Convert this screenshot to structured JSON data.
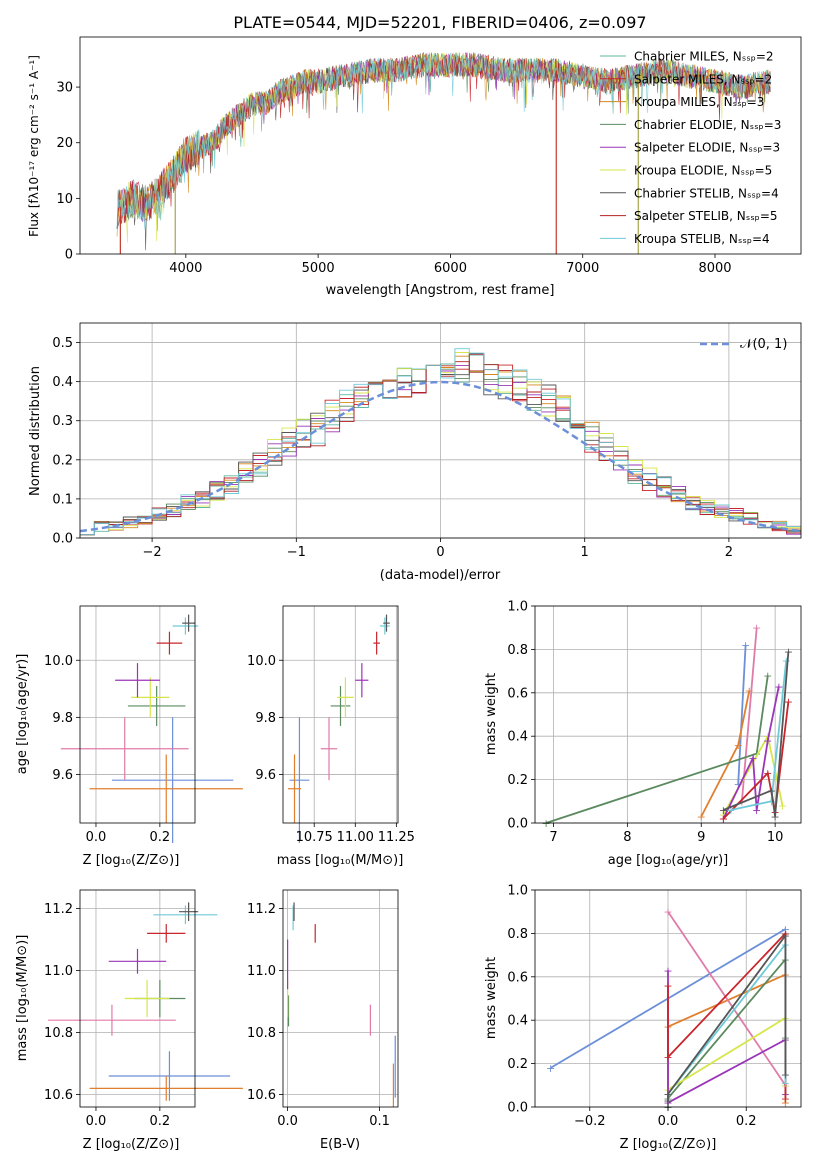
{
  "figure": {
    "title": "PLATE=0544, MJD=52201, FIBERID=0406, z=0.097"
  },
  "colors": {
    "palette": [
      "#5fb89f",
      "#c8262c",
      "#d4881e",
      "#5b8a5f",
      "#9b35b8",
      "#d6e64a",
      "#555555",
      "#b22222",
      "#6fcad8"
    ],
    "ssp_colors": [
      "#6b8fd8",
      "#e07f2e",
      "#e07ba9",
      "#5b8a5f",
      "#d6e64a",
      "#9b35b8",
      "#c8262c",
      "#6fcad8",
      "#555555"
    ],
    "gauss": "#6b8fd8",
    "grid": "#b0b0b0"
  },
  "chart_data": [
    {
      "id": "spectrum",
      "type": "line",
      "title": "PLATE=0544, MJD=52201, FIBERID=0406, z=0.097",
      "xlabel": "wavelength [Angstrom, rest frame]",
      "ylabel": "Flux [fλ10⁻¹⁷ erg cm⁻² s⁻¹ A⁻¹]",
      "xlim": [
        3200,
        8650
      ],
      "ylim": [
        0,
        39
      ],
      "xticks": [
        "4000",
        "5000",
        "6000",
        "7000",
        "8000"
      ],
      "yticks": [
        "0",
        "10",
        "20",
        "30"
      ],
      "grid": false,
      "legend": "top-right",
      "series": [
        {
          "name": "Chabrier MILES, Nₛₛₚ=2"
        },
        {
          "name": "Salpeter MILES, Nₛₛₚ=2"
        },
        {
          "name": "Kroupa MILES, Nₛₛₚ=3"
        },
        {
          "name": "Chabrier ELODIE, Nₛₛₚ=3"
        },
        {
          "name": "Salpeter ELODIE, Nₛₛₚ=3"
        },
        {
          "name": "Kroupa ELODIE, Nₛₛₚ=5"
        },
        {
          "name": "Chabrier STELIB, Nₛₛₚ=4"
        },
        {
          "name": "Salpeter STELIB, Nₛₛₚ=5"
        },
        {
          "name": "Kroupa STELIB, Nₛₛₚ=4"
        }
      ],
      "continuum": {
        "x": [
          3480,
          3600,
          3700,
          3800,
          3900,
          4000,
          4100,
          4200,
          4300,
          4400,
          4500,
          4600,
          4700,
          4800,
          4900,
          5000,
          5200,
          5400,
          5600,
          5800,
          6000,
          6200,
          6400,
          6600,
          6800,
          7000,
          7200,
          7400,
          7600,
          7800,
          8000,
          8200,
          8420
        ],
        "y": [
          8,
          10,
          9,
          11,
          14,
          18,
          19,
          20,
          23,
          25,
          27,
          27,
          29,
          30,
          31,
          31,
          32,
          33,
          33,
          34,
          34,
          34,
          33,
          33,
          33,
          32,
          31,
          32,
          33,
          32,
          31,
          30,
          31
        ]
      },
      "drops": [
        3505,
        3920,
        6800,
        7420
      ]
    },
    {
      "id": "residuals",
      "type": "line",
      "xlabel": "(data-model)/error",
      "ylabel": "Normed distribution",
      "xlim": [
        -2.5,
        2.5
      ],
      "ylim": [
        0,
        0.55
      ],
      "xticks": [
        "−2",
        "−1",
        "0",
        "1",
        "2"
      ],
      "yticks": [
        "0.0",
        "0.1",
        "0.2",
        "0.3",
        "0.4",
        "0.5"
      ],
      "grid": true,
      "legend": "top-right",
      "gauss_label": "𝒩(0, 1)",
      "bin_width": 0.1,
      "bin_start": -2.5,
      "base_values": [
        0.02,
        0.03,
        0.03,
        0.04,
        0.05,
        0.06,
        0.07,
        0.09,
        0.1,
        0.12,
        0.14,
        0.17,
        0.19,
        0.22,
        0.24,
        0.26,
        0.28,
        0.31,
        0.34,
        0.37,
        0.38,
        0.39,
        0.4,
        0.41,
        0.43,
        0.45,
        0.44,
        0.43,
        0.41,
        0.4,
        0.39,
        0.37,
        0.35,
        0.32,
        0.29,
        0.26,
        0.23,
        0.2,
        0.17,
        0.15,
        0.13,
        0.11,
        0.09,
        0.08,
        0.07,
        0.06,
        0.05,
        0.04,
        0.03,
        0.02
      ]
    },
    {
      "id": "age_vs_Z",
      "type": "scatter",
      "xlabel": "Z [log₁₀(Z/Z⊙)]",
      "ylabel": "age  [log₁₀(age/yr)]",
      "xlim": [
        -0.05,
        0.31
      ],
      "ylim": [
        9.43,
        10.19
      ],
      "xticks": [
        "0.0",
        "0.2"
      ],
      "yticks": [
        "9.6",
        "9.8",
        "10.0"
      ],
      "grid": true,
      "points": [
        {
          "x": 0.24,
          "y": 9.58,
          "xe": 0.19,
          "ye": 0.22,
          "c": 0
        },
        {
          "x": 0.22,
          "y": 9.55,
          "xe": 0.24,
          "ye": 0.12,
          "c": 1
        },
        {
          "x": 0.09,
          "y": 9.69,
          "xe": 0.2,
          "ye": 0.11,
          "c": 2
        },
        {
          "x": 0.19,
          "y": 9.84,
          "xe": 0.09,
          "ye": 0.07,
          "c": 3
        },
        {
          "x": 0.17,
          "y": 9.87,
          "xe": 0.06,
          "ye": 0.07,
          "c": 4
        },
        {
          "x": 0.13,
          "y": 9.93,
          "xe": 0.07,
          "ye": 0.06,
          "c": 5
        },
        {
          "x": 0.23,
          "y": 10.06,
          "xe": 0.04,
          "ye": 0.04,
          "c": 6
        },
        {
          "x": 0.28,
          "y": 10.12,
          "xe": 0.04,
          "ye": 0.03,
          "c": 7
        },
        {
          "x": 0.29,
          "y": 10.13,
          "xe": 0.02,
          "ye": 0.03,
          "c": 8
        }
      ]
    },
    {
      "id": "age_vs_mass",
      "type": "scatter",
      "xlabel": "mass [log₁₀(M/M⊙)]",
      "xlim": [
        10.56,
        11.26
      ],
      "ylim": [
        9.43,
        10.19
      ],
      "xticks": [
        "10.75",
        "11.00",
        "11.25"
      ],
      "yticks": [
        "9.6",
        "9.8",
        "10.0"
      ],
      "grid": true,
      "points": [
        {
          "x": 10.66,
          "y": 9.58,
          "xe": 0.06,
          "ye": 0.22,
          "c": 0
        },
        {
          "x": 10.63,
          "y": 9.55,
          "xe": 0.04,
          "ye": 0.12,
          "c": 1
        },
        {
          "x": 10.84,
          "y": 9.69,
          "xe": 0.05,
          "ye": 0.11,
          "c": 2
        },
        {
          "x": 10.91,
          "y": 9.84,
          "xe": 0.06,
          "ye": 0.07,
          "c": 3
        },
        {
          "x": 10.94,
          "y": 9.87,
          "xe": 0.05,
          "ye": 0.07,
          "c": 4
        },
        {
          "x": 11.04,
          "y": 9.93,
          "xe": 0.04,
          "ye": 0.06,
          "c": 5
        },
        {
          "x": 11.13,
          "y": 10.06,
          "xe": 0.02,
          "ye": 0.04,
          "c": 6
        },
        {
          "x": 11.18,
          "y": 10.12,
          "xe": 0.03,
          "ye": 0.03,
          "c": 7
        },
        {
          "x": 11.19,
          "y": 10.13,
          "xe": 0.02,
          "ye": 0.03,
          "c": 8
        }
      ]
    },
    {
      "id": "massweight_vs_age",
      "type": "line",
      "xlabel": "age  [log₁₀(age/yr)]",
      "ylabel": "mass weight",
      "xlim": [
        6.75,
        10.35
      ],
      "ylim": [
        0,
        1
      ],
      "xticks": [
        "7",
        "8",
        "9",
        "10"
      ],
      "yticks": [
        "0.0",
        "0.2",
        "0.4",
        "0.6",
        "0.8",
        "1.0"
      ],
      "grid": true,
      "series": [
        {
          "c": 0,
          "x": [
            9.5,
            9.6
          ],
          "y": [
            0.18,
            0.82
          ]
        },
        {
          "c": 1,
          "x": [
            9.0,
            9.5,
            9.65
          ],
          "y": [
            0.03,
            0.36,
            0.61
          ]
        },
        {
          "c": 2,
          "x": [
            9.55,
            9.75
          ],
          "y": [
            0.1,
            0.9
          ]
        },
        {
          "c": 3,
          "x": [
            6.9,
            9.75,
            9.9
          ],
          "y": [
            0.0,
            0.32,
            0.68
          ]
        },
        {
          "c": 4,
          "x": [
            9.3,
            9.9,
            10.1
          ],
          "y": [
            0.04,
            0.4,
            0.08
          ]
        },
        {
          "c": 5,
          "x": [
            9.3,
            9.7,
            9.75,
            9.9,
            10.05
          ],
          "y": [
            0.02,
            0.3,
            0.06,
            0.38,
            0.63
          ]
        },
        {
          "c": 6,
          "x": [
            9.3,
            9.9,
            10.0,
            10.18
          ],
          "y": [
            0.02,
            0.23,
            0.05,
            0.56
          ]
        },
        {
          "c": 7,
          "x": [
            9.4,
            9.95,
            10.15
          ],
          "y": [
            0.06,
            0.1,
            0.75
          ]
        },
        {
          "c": 8,
          "x": [
            9.3,
            9.95,
            10.0,
            10.18
          ],
          "y": [
            0.06,
            0.15,
            0.03,
            0.79
          ]
        }
      ]
    },
    {
      "id": "mass_vs_Z",
      "type": "scatter",
      "xlabel": "Z [log₁₀(Z/Z⊙)]",
      "ylabel": "mass [log₁₀(M/M⊙)]",
      "xlim": [
        -0.05,
        0.31
      ],
      "ylim": [
        10.56,
        11.26
      ],
      "xticks": [
        "0.0",
        "0.2"
      ],
      "yticks": [
        "10.6",
        "10.8",
        "11.0",
        "11.2"
      ],
      "grid": true,
      "points": [
        {
          "x": 0.23,
          "y": 10.66,
          "xe": 0.19,
          "ye": 0.08,
          "c": 0
        },
        {
          "x": 0.22,
          "y": 10.62,
          "xe": 0.24,
          "ye": 0.04,
          "c": 1
        },
        {
          "x": 0.05,
          "y": 10.84,
          "xe": 0.2,
          "ye": 0.05,
          "c": 2
        },
        {
          "x": 0.2,
          "y": 10.91,
          "xe": 0.08,
          "ye": 0.06,
          "c": 3
        },
        {
          "x": 0.16,
          "y": 10.91,
          "xe": 0.07,
          "ye": 0.06,
          "c": 4
        },
        {
          "x": 0.13,
          "y": 11.03,
          "xe": 0.09,
          "ye": 0.04,
          "c": 5
        },
        {
          "x": 0.22,
          "y": 11.12,
          "xe": 0.06,
          "ye": 0.03,
          "c": 6
        },
        {
          "x": 0.28,
          "y": 11.18,
          "xe": 0.1,
          "ye": 0.03,
          "c": 7
        },
        {
          "x": 0.29,
          "y": 11.19,
          "xe": 0.03,
          "ye": 0.03,
          "c": 8
        }
      ]
    },
    {
      "id": "mass_vs_ebv",
      "type": "scatter",
      "xlabel": "E(B-V)",
      "xlim": [
        -0.005,
        0.12
      ],
      "ylim": [
        10.56,
        11.26
      ],
      "xticks": [
        "0.0",
        "0.1"
      ],
      "yticks": [
        "10.6",
        "10.8",
        "11.0",
        "11.2"
      ],
      "grid": true,
      "points": [
        {
          "x": 0.117,
          "y": 10.69,
          "ye": 0.1,
          "c": 0
        },
        {
          "x": 0.115,
          "y": 10.63,
          "ye": 0.07,
          "c": 1
        },
        {
          "x": 0.09,
          "y": 10.84,
          "ye": 0.05,
          "c": 2
        },
        {
          "x": 0.001,
          "y": 10.87,
          "ye": 0.05,
          "c": 3
        },
        {
          "x": 0.0,
          "y": 10.91,
          "ye": 0.06,
          "c": 4
        },
        {
          "x": 0.0,
          "y": 11.02,
          "ye": 0.08,
          "c": 5
        },
        {
          "x": 0.03,
          "y": 11.12,
          "ye": 0.03,
          "c": 6
        },
        {
          "x": 0.006,
          "y": 11.17,
          "ye": 0.04,
          "c": 7
        },
        {
          "x": 0.007,
          "y": 11.19,
          "ye": 0.03,
          "c": 8
        }
      ]
    },
    {
      "id": "massweight_vs_Z",
      "type": "line",
      "xlabel": "Z [log₁₀(Z/Z⊙)]",
      "ylabel": "mass weight",
      "xlim": [
        -0.34,
        0.34
      ],
      "ylim": [
        0,
        1
      ],
      "xticks": [
        "−0.2",
        "0.0",
        "0.2"
      ],
      "yticks": [
        "0.0",
        "0.2",
        "0.4",
        "0.6",
        "0.8",
        "1.0"
      ],
      "grid": true,
      "series": [
        {
          "c": 0,
          "x": [
            -0.3,
            0.3
          ],
          "y": [
            0.18,
            0.82
          ]
        },
        {
          "c": 1,
          "x": [
            0.0,
            0.0,
            0.3,
            0.3
          ],
          "y": [
            0.03,
            0.37,
            0.61,
            0.02
          ]
        },
        {
          "c": 2,
          "x": [
            0.0,
            0.3
          ],
          "y": [
            0.9,
            0.1
          ]
        },
        {
          "c": 3,
          "x": [
            0.0,
            0.0,
            0.3,
            0.3
          ],
          "y": [
            0.0,
            0.04,
            0.68,
            0.32
          ]
        },
        {
          "c": 4,
          "x": [
            0.0,
            0.0,
            0.3,
            0.3
          ],
          "y": [
            0.02,
            0.08,
            0.41,
            0.1
          ]
        },
        {
          "c": 5,
          "x": [
            0.0,
            0.0,
            0.3,
            0.3
          ],
          "y": [
            0.63,
            0.02,
            0.31,
            0.06
          ]
        },
        {
          "c": 6,
          "x": [
            0.0,
            0.0,
            0.3,
            0.3
          ],
          "y": [
            0.56,
            0.23,
            0.8,
            0.04
          ]
        },
        {
          "c": 7,
          "x": [
            0.0,
            0.0,
            0.3,
            0.3
          ],
          "y": [
            0.03,
            0.06,
            0.75,
            0.11
          ]
        },
        {
          "c": 8,
          "x": [
            0.0,
            0.0,
            0.3,
            0.3
          ],
          "y": [
            0.03,
            0.06,
            0.79,
            0.15
          ]
        }
      ]
    }
  ]
}
